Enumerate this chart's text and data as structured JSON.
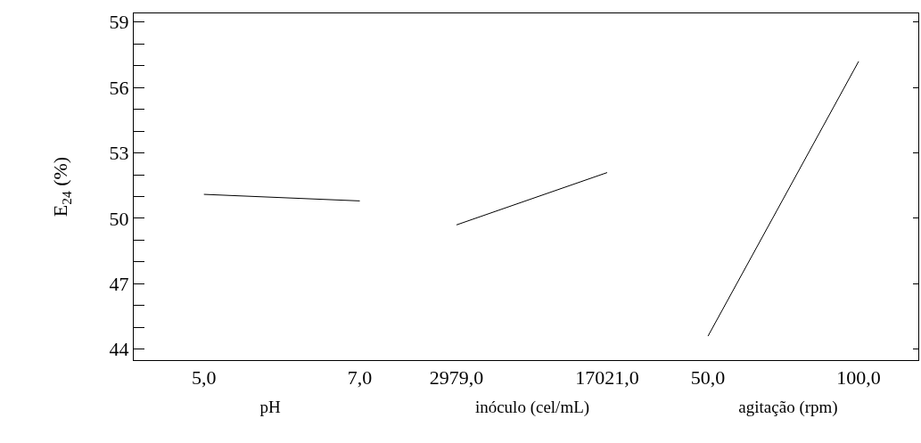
{
  "chart_data": [
    {
      "type": "line",
      "xlabel": "pH",
      "ylabel": "E$_{24}$ (%)",
      "x": [
        5,
        7
      ],
      "values": [
        51.1,
        50.8
      ],
      "color": "#000000",
      "xlim": [
        4.1,
        7.6
      ],
      "xticks": [
        {
          "value": 5,
          "label": "5,0"
        },
        {
          "value": 7,
          "label": "7,0"
        }
      ],
      "ylim": [
        43.5,
        59.4
      ],
      "yticks": [
        {
          "value": 44,
          "label": "44"
        },
        {
          "value": 45,
          "label": null
        },
        {
          "value": 46,
          "label": null
        },
        {
          "value": 47,
          "label": "47"
        },
        {
          "value": 48,
          "label": null
        },
        {
          "value": 49,
          "label": null
        },
        {
          "value": 50,
          "label": "50"
        },
        {
          "value": 51,
          "label": null
        },
        {
          "value": 52,
          "label": null
        },
        {
          "value": 53,
          "label": "53"
        },
        {
          "value": 54,
          "label": null
        },
        {
          "value": 55,
          "label": null
        },
        {
          "value": 56,
          "label": "56"
        },
        {
          "value": 57,
          "label": null
        },
        {
          "value": 58,
          "label": null
        },
        {
          "value": 59,
          "label": "59"
        }
      ],
      "grid": false,
      "marker": "none"
    },
    {
      "type": "line",
      "xlabel": "inóculo (cel/mL)",
      "x": [
        2979,
        17021
      ],
      "values": [
        49.7,
        52.1
      ],
      "color": "#000000",
      "xlim": [
        -1675,
        21758
      ],
      "xticks": [
        {
          "value": 2979,
          "label": "2979,0"
        },
        {
          "value": 17021,
          "label": "17021,0"
        }
      ],
      "ylim": [
        43.5,
        59.4
      ],
      "tick_labels": "x",
      "grid": false,
      "marker": "none"
    },
    {
      "type": "line",
      "xlabel": "agitação (rpm)",
      "x": [
        50,
        100
      ],
      "values": [
        44.6,
        57.2
      ],
      "color": "#000000",
      "xlim": [
        33.4,
        119.8
      ],
      "xticks": [
        {
          "value": 50,
          "label": "50,0"
        },
        {
          "value": 100,
          "label": "100,0"
        }
      ],
      "ylim": [
        43.5,
        59.4
      ],
      "yticks": [
        {
          "value": 44,
          "label": null
        },
        {
          "value": 47,
          "label": null
        },
        {
          "value": 50,
          "label": null
        },
        {
          "value": 53,
          "label": null
        },
        {
          "value": 56,
          "label": null
        },
        {
          "value": 59,
          "label": null
        }
      ],
      "tick_labels": "x",
      "grid": false,
      "marker": "none"
    }
  ]
}
